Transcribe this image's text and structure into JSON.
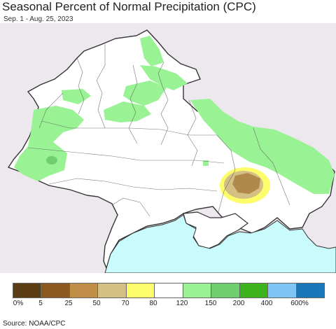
{
  "title": "Seasonal Percent of Normal Precipitation (CPC)",
  "date_range": "Sep. 1 - Aug. 25, 2023",
  "source": "Source: NOAA/CPC",
  "legend": {
    "colors": [
      "#5a3d13",
      "#8c5a20",
      "#c18e48",
      "#d4bf84",
      "#fdfd6b",
      "#ffffff",
      "#99f293",
      "#6fcf6f",
      "#3cb31b",
      "#7ec5f5",
      "#1b78b8"
    ],
    "labels": [
      "0%",
      "5",
      "25",
      "50",
      "70",
      "80",
      "120",
      "150",
      "200",
      "400",
      "600%"
    ]
  },
  "colors": {
    "land": "#ffffff",
    "outside": "#ece8ee",
    "sea": "#c9fafc",
    "border": "#333333",
    "wet": "#99f293",
    "wetter": "#6fcf6f",
    "dry_light": "#fdfd6b",
    "dry_mid": "#c18e48",
    "dry_dark": "#b0894a"
  }
}
